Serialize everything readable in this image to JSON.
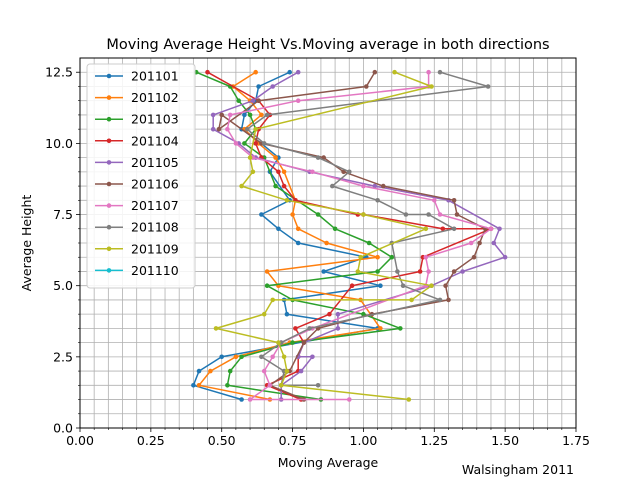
{
  "chart_data": {
    "type": "line",
    "title": "Moving Average Height Vs.Moving average in both directions",
    "xlabel": "Moving Average",
    "ylabel": "Average Height",
    "annotation": "Walsingham 2011",
    "xlim": [
      0.0,
      1.75
    ],
    "ylim": [
      0.0,
      13.0
    ],
    "xticks": [
      "0.00",
      "0.25",
      "0.50",
      "0.75",
      "1.00",
      "1.25",
      "1.50",
      "1.75"
    ],
    "yticks": [
      "0.0",
      "2.5",
      "5.0",
      "7.5",
      "10.0",
      "12.5"
    ],
    "grid": true,
    "legend_position": "upper-left",
    "series": [
      {
        "name": "201101",
        "color": "#1f77b4",
        "x": [
          0.74,
          0.63,
          0.62,
          0.58,
          0.57,
          0.64,
          0.7,
          0.67,
          0.74,
          0.64,
          0.7,
          0.77,
          1.01,
          0.86,
          1.06,
          0.72,
          0.73,
          1.05,
          0.5,
          0.42,
          0.4,
          0.57
        ],
        "y": [
          12.5,
          12.0,
          11.5,
          11.0,
          10.5,
          10.0,
          9.5,
          9.0,
          8.0,
          7.5,
          7.0,
          6.5,
          6.0,
          5.5,
          5.0,
          4.5,
          4.0,
          3.5,
          2.5,
          2.0,
          1.5,
          1.0
        ]
      },
      {
        "name": "201102",
        "color": "#ff7f0e",
        "x": [
          0.62,
          0.54,
          0.6,
          0.64,
          0.58,
          0.63,
          0.69,
          0.72,
          0.76,
          0.75,
          0.77,
          0.87,
          1.05,
          0.66,
          0.7,
          0.99,
          1.06,
          0.74,
          0.55,
          0.46,
          0.42,
          0.67
        ],
        "y": [
          12.5,
          12.0,
          11.5,
          11.0,
          10.5,
          10.0,
          9.5,
          9.0,
          8.0,
          7.5,
          7.0,
          6.5,
          6.0,
          5.5,
          5.0,
          4.5,
          3.5,
          3.0,
          2.5,
          2.0,
          1.5,
          1.0
        ]
      },
      {
        "name": "201103",
        "color": "#2ca02c",
        "x": [
          0.41,
          0.53,
          0.56,
          0.6,
          0.62,
          0.58,
          0.65,
          0.69,
          0.84,
          0.9,
          1.02,
          1.1,
          1.05,
          0.66,
          0.75,
          1.0,
          1.13,
          0.75,
          0.57,
          0.53,
          0.52,
          0.85
        ],
        "y": [
          12.5,
          12.0,
          11.5,
          11.0,
          10.5,
          10.0,
          9.5,
          8.5,
          7.5,
          7.0,
          6.5,
          6.0,
          5.5,
          5.0,
          4.5,
          4.0,
          3.5,
          3.0,
          2.5,
          2.0,
          1.5,
          1.0
        ]
      },
      {
        "name": "201104",
        "color": "#d62728",
        "x": [
          0.45,
          0.63,
          0.67,
          0.63,
          0.62,
          0.64,
          0.7,
          0.72,
          0.76,
          0.98,
          1.0,
          1.28,
          1.45,
          1.21,
          1.2,
          0.96,
          0.88,
          0.76,
          0.79,
          0.77,
          0.77,
          0.66,
          0.78
        ],
        "y": [
          12.5,
          11.5,
          11.0,
          10.5,
          10.0,
          9.5,
          9.0,
          8.5,
          8.0,
          7.5,
          7.5,
          7.0,
          7.0,
          6.0,
          5.5,
          5.0,
          4.0,
          3.5,
          3.0,
          2.5,
          2.0,
          1.5,
          1.0
        ]
      },
      {
        "name": "201105",
        "color": "#9467bd",
        "x": [
          0.77,
          0.68,
          0.61,
          0.47,
          0.47,
          0.56,
          0.62,
          0.81,
          1.04,
          1.3,
          1.48,
          1.46,
          1.5,
          1.35,
          1.24,
          0.91,
          0.91,
          0.79,
          0.77,
          0.82,
          0.78,
          0.71,
          0.71
        ],
        "y": [
          12.5,
          12.0,
          11.5,
          11.0,
          10.5,
          10.0,
          9.5,
          9.0,
          8.5,
          8.0,
          7.0,
          6.5,
          6.0,
          5.5,
          5.0,
          4.0,
          3.5,
          3.0,
          2.5,
          2.5,
          2.0,
          1.5,
          1.0
        ]
      },
      {
        "name": "201106",
        "color": "#8c564b",
        "x": [
          1.04,
          1.01,
          0.63,
          0.49,
          0.5,
          0.64,
          0.86,
          0.93,
          1.07,
          1.32,
          1.33,
          1.43,
          1.41,
          1.39,
          1.32,
          1.29,
          1.3,
          1.03,
          0.84,
          0.79,
          0.74,
          0.67,
          0.79
        ],
        "y": [
          12.5,
          12.0,
          11.5,
          10.5,
          11.0,
          10.0,
          9.5,
          9.0,
          8.5,
          8.0,
          7.5,
          7.0,
          6.5,
          6.0,
          5.5,
          5.0,
          4.5,
          4.0,
          3.5,
          3.0,
          2.0,
          1.5,
          1.0
        ]
      },
      {
        "name": "201107",
        "color": "#e377c2",
        "x": [
          1.23,
          1.23,
          0.77,
          0.53,
          0.52,
          0.55,
          0.61,
          0.82,
          1.0,
          1.25,
          1.27,
          1.45,
          1.38,
          1.22,
          1.23,
          1.22,
          0.82,
          0.71,
          0.68,
          0.65,
          0.67,
          0.6,
          0.95
        ],
        "y": [
          12.5,
          12.0,
          11.5,
          11.0,
          10.5,
          10.0,
          9.5,
          9.0,
          8.5,
          8.0,
          7.5,
          7.0,
          6.5,
          6.0,
          5.5,
          5.0,
          3.5,
          3.0,
          2.5,
          2.0,
          1.5,
          1.0,
          1.0
        ]
      },
      {
        "name": "201108",
        "color": "#7f7f7f",
        "x": [
          1.27,
          1.44,
          0.66,
          0.59,
          0.65,
          0.84,
          0.95,
          0.89,
          1.05,
          1.15,
          1.23,
          1.32,
          1.1,
          1.12,
          1.14,
          1.27,
          0.81,
          0.71,
          0.64,
          0.72,
          0.71,
          0.84
        ],
        "y": [
          12.5,
          12.0,
          11.0,
          10.5,
          10.0,
          9.5,
          9.0,
          8.5,
          8.0,
          7.5,
          7.5,
          7.0,
          6.5,
          5.5,
          5.0,
          4.5,
          3.5,
          3.0,
          2.5,
          2.0,
          1.5,
          1.5
        ]
      },
      {
        "name": "201109",
        "color": "#bcbd22",
        "x": [
          1.11,
          1.24,
          0.62,
          0.6,
          0.61,
          0.57,
          0.73,
          1.0,
          1.22,
          0.99,
          0.98,
          1.24,
          1.17,
          0.68,
          0.65,
          0.48,
          0.7,
          0.72,
          0.73,
          0.71,
          1.16
        ],
        "y": [
          12.5,
          12.0,
          10.5,
          9.5,
          9.0,
          8.5,
          8.0,
          7.5,
          7.0,
          6.0,
          5.5,
          5.0,
          4.5,
          4.5,
          4.0,
          3.5,
          3.0,
          2.5,
          2.0,
          1.5,
          1.0
        ]
      },
      {
        "name": "201110",
        "color": "#17becf",
        "x": [],
        "y": []
      }
    ]
  }
}
